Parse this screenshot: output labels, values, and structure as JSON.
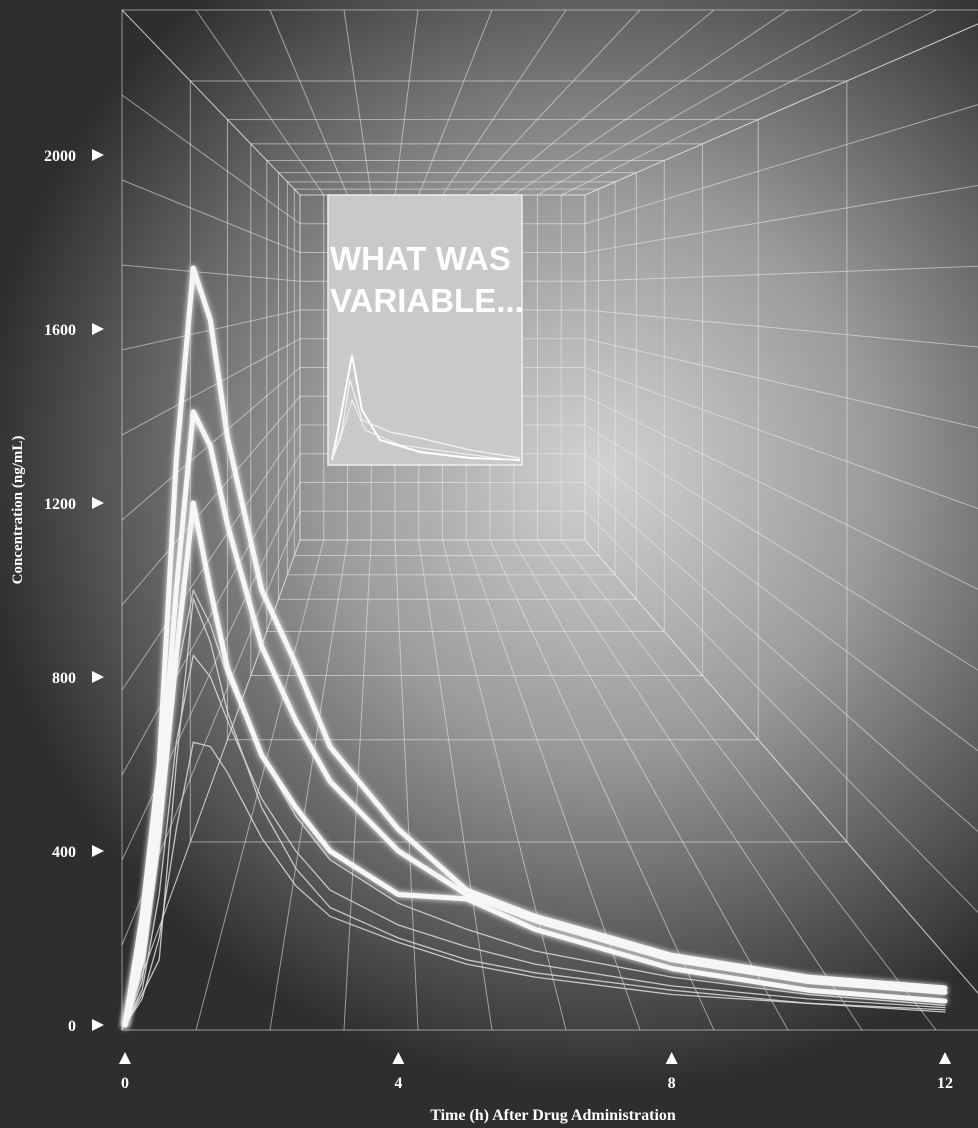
{
  "chart_data": {
    "type": "line",
    "annotation": [
      "WHAT WAS",
      "VARIABLE..."
    ],
    "xlabel": "Time (h) After Drug Administration",
    "ylabel": "Concentration (ng/mL)",
    "x": [
      0,
      0.25,
      0.5,
      0.75,
      1,
      1.25,
      1.5,
      2,
      2.5,
      3,
      4,
      5,
      6,
      8,
      10,
      12
    ],
    "xlim": [
      0,
      12
    ],
    "xticks": [
      0,
      4,
      8,
      12
    ],
    "ylim": [
      0,
      2000
    ],
    "yticks": [
      0,
      400,
      800,
      1200,
      1600,
      2000
    ],
    "series": [
      {
        "color": "#f6f6f6",
        "values": [
          0,
          250,
          600,
          1300,
          1740,
          1620,
          1350,
          1000,
          830,
          640,
          450,
          310,
          250,
          160,
          110,
          85
        ]
      },
      {
        "color": "#f6f6f6",
        "values": [
          0,
          200,
          500,
          1000,
          1410,
          1330,
          1150,
          870,
          700,
          560,
          400,
          300,
          240,
          150,
          100,
          75
        ]
      },
      {
        "color": "#f6f6f6",
        "values": [
          0,
          150,
          450,
          850,
          1200,
          1000,
          820,
          620,
          500,
          400,
          300,
          290,
          220,
          130,
          80,
          55
        ]
      },
      {
        "color": "#dcdcdc",
        "values": [
          0,
          100,
          400,
          800,
          1000,
          920,
          800,
          620,
          480,
          380,
          280,
          220,
          170,
          110,
          70,
          45
        ]
      },
      {
        "color": "#dcdcdc",
        "values": [
          0,
          80,
          300,
          650,
          850,
          800,
          700,
          520,
          400,
          310,
          230,
          180,
          140,
          90,
          60,
          40
        ]
      },
      {
        "color": "#dcdcdc",
        "values": [
          0,
          60,
          200,
          450,
          650,
          640,
          580,
          430,
          320,
          250,
          190,
          140,
          110,
          70,
          50,
          30
        ]
      },
      {
        "color": "#dcdcdc",
        "values": [
          0,
          70,
          150,
          600,
          980,
          880,
          720,
          500,
          360,
          270,
          200,
          150,
          120,
          80,
          50,
          35
        ]
      }
    ]
  }
}
